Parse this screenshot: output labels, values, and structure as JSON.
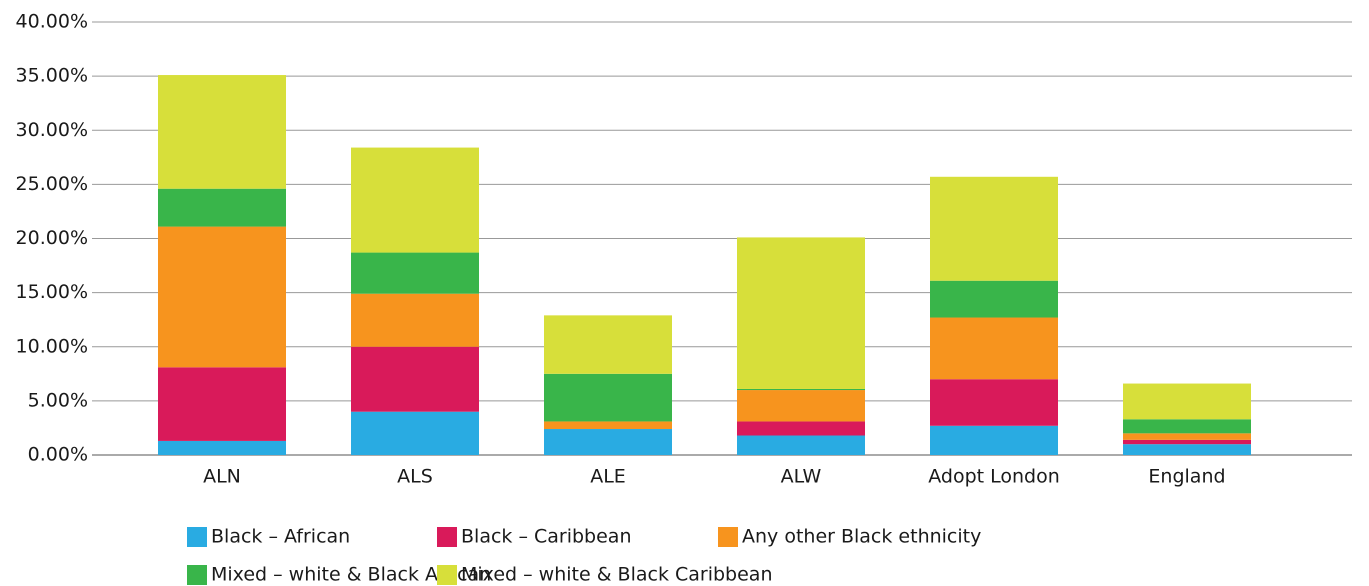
{
  "chart_data": {
    "type": "stacked_bar",
    "categories": [
      "ALN",
      "ALS",
      "ALE",
      "ALW",
      "Adopt London",
      "England"
    ],
    "series": [
      {
        "name": "Black – African",
        "color": "#29abe2",
        "values": [
          1.3,
          4.0,
          2.4,
          1.8,
          2.7,
          1.0
        ]
      },
      {
        "name": "Black – Caribbean",
        "color": "#d91a5a",
        "values": [
          6.8,
          6.0,
          0,
          1.3,
          4.3,
          0.4
        ]
      },
      {
        "name": "Any other Black ethnicity",
        "color": "#f7941e",
        "values": [
          13.0,
          4.9,
          0.7,
          2.9,
          5.7,
          0.6
        ]
      },
      {
        "name": "Mixed – white & Black African",
        "color": "#39b54a",
        "values": [
          3.5,
          3.8,
          4.4,
          0.1,
          3.4,
          1.3
        ]
      },
      {
        "name": "Mixed – white & Black Caribbean",
        "color": "#d7df3a",
        "values": [
          10.5,
          9.7,
          5.4,
          14.0,
          9.6,
          3.3
        ]
      }
    ],
    "ylim": [
      0,
      40
    ],
    "yticks": [
      {
        "value": 0,
        "label": "0.00%"
      },
      {
        "value": 5,
        "label": "5.00%"
      },
      {
        "value": 10,
        "label": "10.00%"
      },
      {
        "value": 15,
        "label": "15.00%"
      },
      {
        "value": 20,
        "label": "20.00%"
      },
      {
        "value": 25,
        "label": "25.00%"
      },
      {
        "value": 30,
        "label": "30.00%"
      },
      {
        "value": 35,
        "label": "35.00%"
      },
      {
        "value": 40,
        "label": "40.00%"
      }
    ],
    "grid": true,
    "legend": "bottom"
  }
}
